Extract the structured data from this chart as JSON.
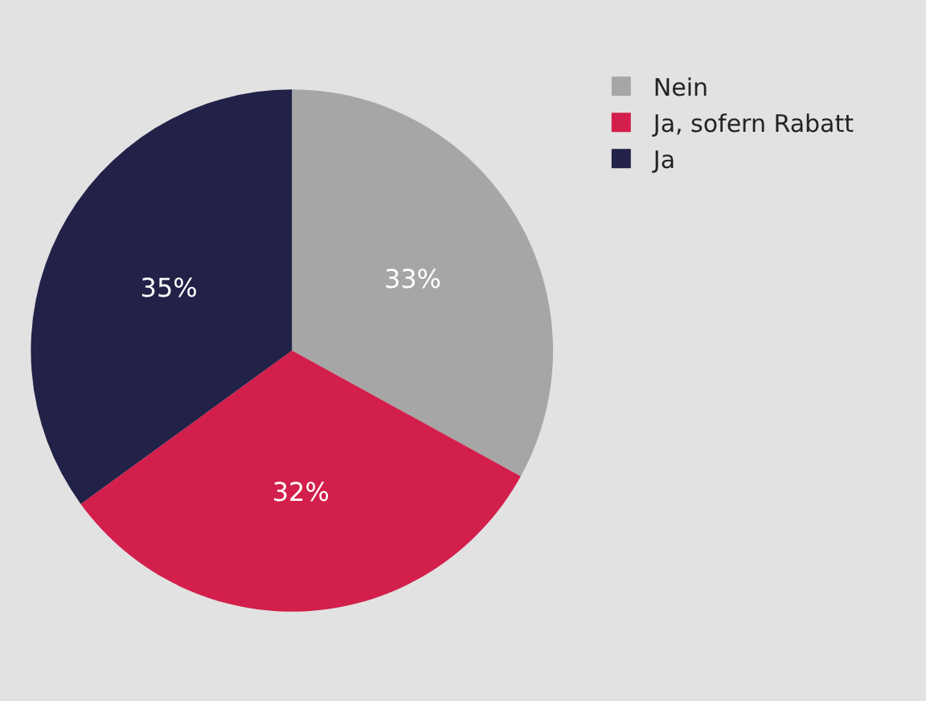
{
  "chart_data": {
    "type": "pie",
    "categories": [
      "Nein",
      "Ja, sofern Rabatt",
      "Ja"
    ],
    "values": [
      33,
      32,
      35
    ],
    "colors": [
      "#a6a6a6",
      "#d31f4b",
      "#222147"
    ],
    "value_labels": [
      "33%",
      "32%",
      "35%"
    ],
    "legend": "top right"
  }
}
